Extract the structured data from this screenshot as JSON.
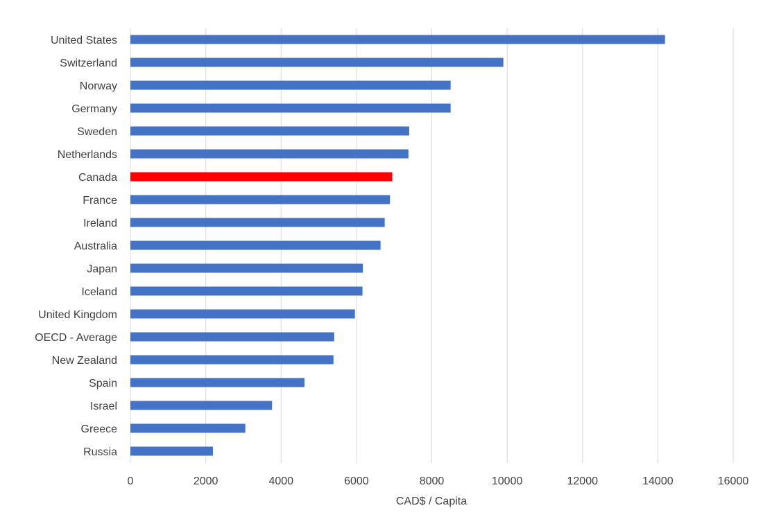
{
  "chart_data": {
    "type": "bar",
    "orientation": "horizontal",
    "title": "",
    "xlabel": "CAD$ / Capita",
    "ylabel": "",
    "xlim": [
      0,
      16000
    ],
    "x_ticks": [
      0,
      2000,
      4000,
      6000,
      8000,
      10000,
      12000,
      14000,
      16000
    ],
    "grid": true,
    "legend": "none",
    "default_color": "#4472c4",
    "highlight_color": "#ff0000",
    "highlight_category": "Canada",
    "categories": [
      "United States",
      "Switzerland",
      "Norway",
      "Germany",
      "Sweden",
      "Netherlands",
      "Canada",
      "France",
      "Ireland",
      "Australia",
      "Japan",
      "Iceland",
      "United Kingdom",
      "OECD - Average",
      "New Zealand",
      "Spain",
      "Israel",
      "Greece",
      "Russia"
    ],
    "values": [
      14190,
      9900,
      8500,
      8500,
      7400,
      7380,
      6950,
      6890,
      6750,
      6640,
      6170,
      6160,
      5960,
      5410,
      5390,
      4620,
      3760,
      3050,
      2190
    ]
  }
}
